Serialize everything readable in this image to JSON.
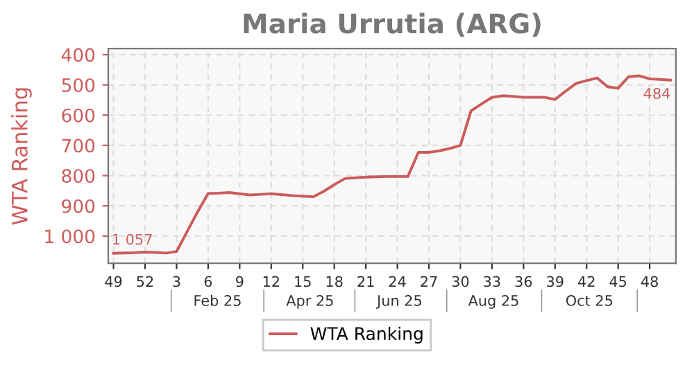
{
  "chart_data": {
    "type": "line",
    "title": "Maria Urrutia (ARG)",
    "ylabel": "WTA Ranking",
    "categories": [
      "49",
      null,
      null,
      "52",
      null,
      null,
      "3",
      null,
      null,
      "6",
      null,
      null,
      "9",
      null,
      null,
      "12",
      null,
      null,
      "15",
      null,
      null,
      "18",
      null,
      null,
      "21",
      null,
      null,
      "24",
      null,
      null,
      "27",
      null,
      null,
      "30",
      null,
      null,
      "33",
      null,
      null,
      "36",
      null,
      null,
      "39",
      null,
      null,
      "42",
      null,
      null,
      "45",
      null,
      null,
      "48",
      null,
      null
    ],
    "series": [
      {
        "name": "WTA Ranking",
        "color": "#cc5b5b",
        "values": [
          1057,
          1056,
          1055,
          1053,
          1054,
          1056,
          1051,
          985,
          920,
          859,
          858,
          856,
          860,
          864,
          862,
          860,
          863,
          866,
          868,
          870,
          852,
          830,
          810,
          807,
          805,
          804,
          803,
          803,
          803,
          723,
          723,
          718,
          710,
          700,
          586,
          563,
          541,
          536,
          538,
          541,
          541,
          541,
          548,
          521,
          495,
          486,
          477,
          506,
          511,
          473,
          470,
          480,
          482,
          484
        ],
        "value_labels": [
          "1 057",
          null,
          null,
          null,
          null,
          null,
          null,
          null,
          null,
          null,
          null,
          null,
          null,
          null,
          null,
          null,
          null,
          null,
          null,
          null,
          null,
          null,
          null,
          null,
          null,
          null,
          null,
          null,
          null,
          null,
          null,
          null,
          null,
          null,
          null,
          null,
          null,
          null,
          null,
          null,
          null,
          null,
          null,
          null,
          null,
          null,
          null,
          null,
          null,
          null,
          null,
          null,
          null,
          "484"
        ]
      }
    ],
    "ylim": [
      1090,
      380
    ],
    "yticks": [
      400,
      500,
      600,
      700,
      800,
      900,
      {
        "value": 1000,
        "label": "1 000"
      }
    ],
    "x2lim": [
      "2024-12-02",
      "2025-12-11"
    ],
    "x2ticks": [
      {
        "value": "2025-02-12",
        "label": "Feb 25"
      },
      {
        "value": "2025-04-14",
        "label": "Apr 25"
      },
      {
        "value": "2025-06-12",
        "label": "Jun 25"
      },
      {
        "value": "2025-08-13",
        "label": "Aug 25"
      },
      {
        "value": "2025-10-15",
        "label": "Oct 25"
      }
    ],
    "grid": true,
    "legend": "bottom",
    "marker": "none",
    "line_style": "solid"
  }
}
